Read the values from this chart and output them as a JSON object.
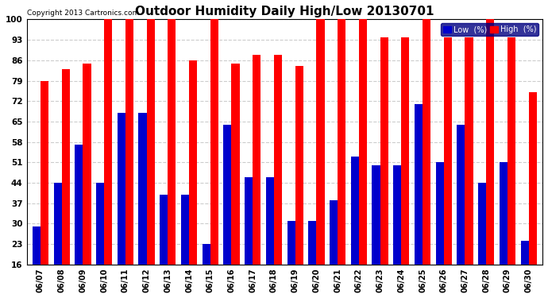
{
  "title": "Outdoor Humidity Daily High/Low 20130701",
  "copyright": "Copyright 2013 Cartronics.com",
  "categories": [
    "06/07",
    "06/08",
    "06/09",
    "06/10",
    "06/11",
    "06/12",
    "06/13",
    "06/14",
    "06/15",
    "06/16",
    "06/17",
    "06/18",
    "06/19",
    "06/20",
    "06/21",
    "06/22",
    "06/23",
    "06/24",
    "06/25",
    "06/26",
    "06/27",
    "06/28",
    "06/29",
    "06/30"
  ],
  "high_values": [
    79,
    83,
    85,
    100,
    100,
    100,
    100,
    86,
    100,
    85,
    88,
    88,
    84,
    100,
    100,
    100,
    94,
    94,
    100,
    94,
    94,
    100,
    94,
    75
  ],
  "low_values": [
    29,
    44,
    57,
    44,
    68,
    68,
    40,
    40,
    23,
    64,
    46,
    46,
    31,
    31,
    38,
    53,
    50,
    50,
    71,
    51,
    64,
    44,
    51,
    24
  ],
  "bg_color": "#ffffff",
  "plot_bg_color": "#ffffff",
  "grid_color": "#cccccc",
  "bar_color_high": "#ff0000",
  "bar_color_low": "#0000cc",
  "ylim_min": 16,
  "ylim_max": 100,
  "yticks": [
    16,
    23,
    30,
    37,
    44,
    51,
    58,
    65,
    72,
    79,
    86,
    93,
    100
  ],
  "title_fontsize": 11,
  "legend_low_label": "Low  (%)",
  "legend_high_label": "High  (%)"
}
